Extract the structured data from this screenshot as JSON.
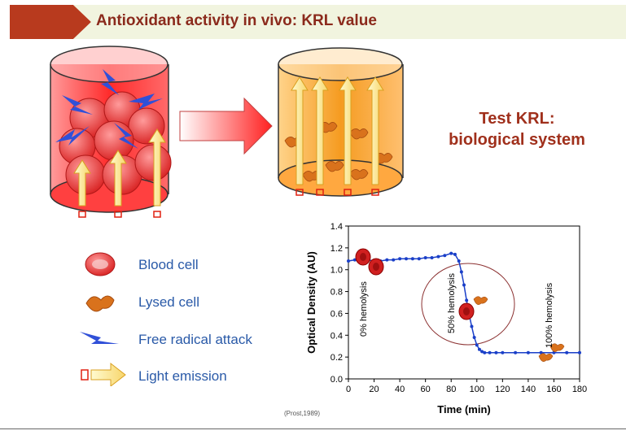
{
  "title": "Antioxidant activity in vivo: KRL value",
  "side_label": {
    "line1": "Test KRL:",
    "line2": "biological system"
  },
  "legend": [
    {
      "label": "Blood cell",
      "icon": "blood-cell-icon"
    },
    {
      "label": "Lysed cell",
      "icon": "lysed-cell-icon"
    },
    {
      "label": "Free radical attack",
      "icon": "lightning-icon"
    },
    {
      "label": "Light emission",
      "icon": "light-arrow-icon"
    }
  ],
  "citation": "(Prost,1989)",
  "colors": {
    "title": "#8b2a1c",
    "legend_text": "#2a5aa8",
    "curve": "#1a3fc8",
    "band": "#f1f4df",
    "band_tip": "#b83a1e"
  },
  "chart_data": {
    "type": "line",
    "xlabel": "Time (min)",
    "ylabel": "Optical Density (AU)",
    "xlim": [
      0,
      180
    ],
    "ylim": [
      0,
      1.4
    ],
    "x_ticks": [
      "0",
      "20",
      "40",
      "60",
      "80",
      "100",
      "120",
      "140",
      "160",
      "180"
    ],
    "y_ticks": [
      "0.0",
      "0.2",
      "0.4",
      "0.6",
      "0.8",
      "1.0",
      "1.2",
      "1.4"
    ],
    "series": [
      {
        "x": [
          0,
          5,
          10,
          15,
          20,
          25,
          30,
          35,
          40,
          45,
          50,
          55,
          60,
          65,
          70,
          75,
          80,
          83,
          86,
          88,
          90,
          92,
          94,
          96,
          98,
          100,
          102,
          104,
          106,
          110,
          115,
          120,
          130,
          140,
          150,
          160,
          170,
          180
        ],
        "y": [
          1.08,
          1.09,
          1.09,
          1.09,
          1.08,
          1.08,
          1.09,
          1.09,
          1.1,
          1.1,
          1.1,
          1.1,
          1.11,
          1.11,
          1.12,
          1.13,
          1.15,
          1.14,
          1.08,
          0.98,
          0.86,
          0.72,
          0.59,
          0.48,
          0.38,
          0.31,
          0.27,
          0.25,
          0.24,
          0.24,
          0.24,
          0.24,
          0.24,
          0.24,
          0.24,
          0.24,
          0.24,
          0.24
        ]
      }
    ],
    "annotations": [
      "0% hemolysis",
      "50% hemolysis",
      "100% hemolysis"
    ]
  }
}
